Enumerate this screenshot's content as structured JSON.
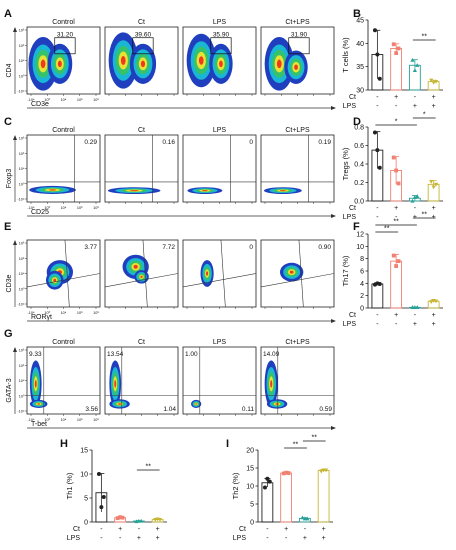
{
  "colors": {
    "control": "#222222",
    "ct": "#f08070",
    "lps": "#2aa198",
    "ct_lps": "#c6b634",
    "density_low": "#1f3fbf",
    "density_mid": "#35c26b",
    "density_high": "#f03a1f"
  },
  "sign_rows": {
    "ct": [
      "-",
      "+",
      "-",
      "+"
    ],
    "lps": [
      "-",
      "-",
      "+",
      "+"
    ]
  },
  "flow_rows": [
    {
      "letter": "A",
      "ylabel": "CD4",
      "xlabel": "CD3e",
      "gate": "box",
      "ticks": [
        "-10⁴",
        "10⁰",
        "10⁴",
        "10⁵",
        "10⁶"
      ],
      "panels": [
        {
          "title": "Control",
          "values": [
            "31.20"
          ]
        },
        {
          "title": "Ct",
          "values": [
            "39.60"
          ]
        },
        {
          "title": "LPS",
          "values": [
            "35.90"
          ]
        },
        {
          "title": "Ct+LPS",
          "values": [
            "31.90"
          ]
        }
      ]
    },
    {
      "letter": "C",
      "ylabel": "Foxp3",
      "xlabel": "CD25",
      "gate": "quad",
      "ticks": [
        "-10⁴",
        "10⁰",
        "10⁴",
        "10⁵",
        "10⁶"
      ],
      "panels": [
        {
          "title": "Control",
          "values": [
            "0.29"
          ]
        },
        {
          "title": "Ct",
          "values": [
            "0.16"
          ]
        },
        {
          "title": "LPS",
          "values": [
            "0"
          ]
        },
        {
          "title": "Ct+LPS",
          "values": [
            "0.19"
          ]
        }
      ]
    },
    {
      "letter": "E",
      "ylabel": "CD3e",
      "xlabel": "RORγt",
      "gate": "quad-skew",
      "ticks": [
        "-10⁴",
        "10⁰",
        "10⁴",
        "10⁵",
        "10⁶"
      ],
      "panels": [
        {
          "title": "",
          "values": [
            "3.77"
          ]
        },
        {
          "title": "",
          "values": [
            "7.72"
          ]
        },
        {
          "title": "",
          "values": [
            "0"
          ]
        },
        {
          "title": "",
          "values": [
            "0.90"
          ]
        }
      ]
    },
    {
      "letter": "G",
      "ylabel": "GATA-3",
      "xlabel": "T-bet",
      "gate": "quad",
      "ticks": [
        "-10⁴",
        "10⁰",
        "10⁴",
        "10⁵",
        "10⁶"
      ],
      "panels": [
        {
          "title": "Control",
          "values": [
            "9.33",
            "3.56"
          ]
        },
        {
          "title": "Ct",
          "values": [
            "13.54",
            "1.04"
          ]
        },
        {
          "title": "LPS",
          "values": [
            "1.00",
            "0.11"
          ]
        },
        {
          "title": "Ct+LPS",
          "values": [
            "14.09",
            "0.59"
          ]
        }
      ]
    }
  ],
  "chart_data": [
    {
      "type": "bar",
      "panel": "B",
      "ylabel": "T cells (%)",
      "ylim": [
        30,
        45
      ],
      "yticks": [
        "30",
        "35",
        "40",
        "45"
      ],
      "categories": [
        "Control",
        "Ct",
        "LPS",
        "Ct+LPS"
      ],
      "values": [
        37.6,
        38.9,
        35.3,
        31.8
      ],
      "errors": [
        5.2,
        1.0,
        1.2,
        0.3
      ],
      "points": [
        [
          42.8,
          37.6,
          32.4
        ],
        [
          39.8,
          37.9,
          38.9
        ],
        [
          36.4,
          34.2,
          35.3
        ],
        [
          32.1,
          31.6,
          31.8
        ]
      ],
      "significance": [
        {
          "from": 2,
          "to": 3,
          "label": "**"
        }
      ]
    },
    {
      "type": "bar",
      "panel": "D",
      "ylabel": "Tregs (%)",
      "ylim": [
        0,
        0.8
      ],
      "yticks": [
        "0.0",
        "0.2",
        "0.4",
        "0.6",
        "0.8"
      ],
      "categories": [
        "Control",
        "Ct",
        "LPS",
        "Ct+LPS"
      ],
      "values": [
        0.55,
        0.33,
        0.03,
        0.18
      ],
      "errors": [
        0.2,
        0.15,
        0.03,
        0.04
      ],
      "points": [
        [
          0.74,
          0.55,
          0.36
        ],
        [
          0.47,
          0.33,
          0.19
        ],
        [
          0.0,
          0.04,
          0.05
        ],
        [
          0.21,
          0.15,
          0.18
        ]
      ],
      "significance": [
        {
          "from": 0,
          "to": 2,
          "label": "*"
        },
        {
          "from": 2,
          "to": 3,
          "label": "*"
        }
      ]
    },
    {
      "type": "bar",
      "panel": "F",
      "ylabel": "Th17 (%)",
      "ylim": [
        0,
        12
      ],
      "yticks": [
        "0",
        "2",
        "4",
        "6",
        "8",
        "10",
        "12"
      ],
      "categories": [
        "Control",
        "Ct",
        "LPS",
        "Ct+LPS"
      ],
      "values": [
        3.9,
        7.6,
        0.1,
        1.1
      ],
      "errors": [
        0.2,
        1.1,
        0.05,
        0.2
      ],
      "points": [
        [
          3.8,
          4.0,
          3.9
        ],
        [
          8.5,
          6.8,
          7.6
        ],
        [
          0.1,
          0.1,
          0.1
        ],
        [
          1.0,
          1.2,
          1.1
        ]
      ],
      "significance": [
        {
          "from": 0,
          "to": 1,
          "label": "**"
        },
        {
          "from": 0,
          "to": 2,
          "label": "**"
        },
        {
          "from": 2,
          "to": 3,
          "label": "**"
        }
      ]
    },
    {
      "type": "bar",
      "panel": "H",
      "ylabel": "Th1 (%)",
      "ylim": [
        0,
        15
      ],
      "yticks": [
        "0",
        "5",
        "10",
        "15"
      ],
      "categories": [
        "Control",
        "Ct",
        "LPS",
        "Ct+LPS"
      ],
      "values": [
        6.1,
        0.9,
        0.2,
        0.5
      ],
      "errors": [
        4.0,
        0.2,
        0.1,
        0.1
      ],
      "points": [
        [
          10.0,
          3.1,
          5.2
        ],
        [
          0.8,
          1.0,
          0.9
        ],
        [
          0.1,
          0.2,
          0.2
        ],
        [
          0.5,
          0.6,
          0.5
        ]
      ],
      "significance": [
        {
          "from": 2,
          "to": 3,
          "label": "**"
        }
      ]
    },
    {
      "type": "bar",
      "panel": "I",
      "ylabel": "Th2 (%)",
      "ylim": [
        0,
        20
      ],
      "yticks": [
        "0",
        "5",
        "10",
        "15",
        "20"
      ],
      "categories": [
        "Control",
        "Ct",
        "LPS",
        "Ct+LPS"
      ],
      "values": [
        10.9,
        13.6,
        1.0,
        14.3
      ],
      "errors": [
        1.2,
        0.3,
        0.2,
        0.3
      ],
      "points": [
        [
          9.6,
          12.0,
          11.2
        ],
        [
          13.5,
          13.7,
          13.6
        ],
        [
          1.2,
          0.9,
          0.9
        ],
        [
          14.1,
          14.4,
          14.4
        ]
      ],
      "significance": [
        {
          "from": 1,
          "to": 2,
          "label": "**"
        },
        {
          "from": 2,
          "to": 3,
          "label": "**"
        }
      ]
    }
  ]
}
